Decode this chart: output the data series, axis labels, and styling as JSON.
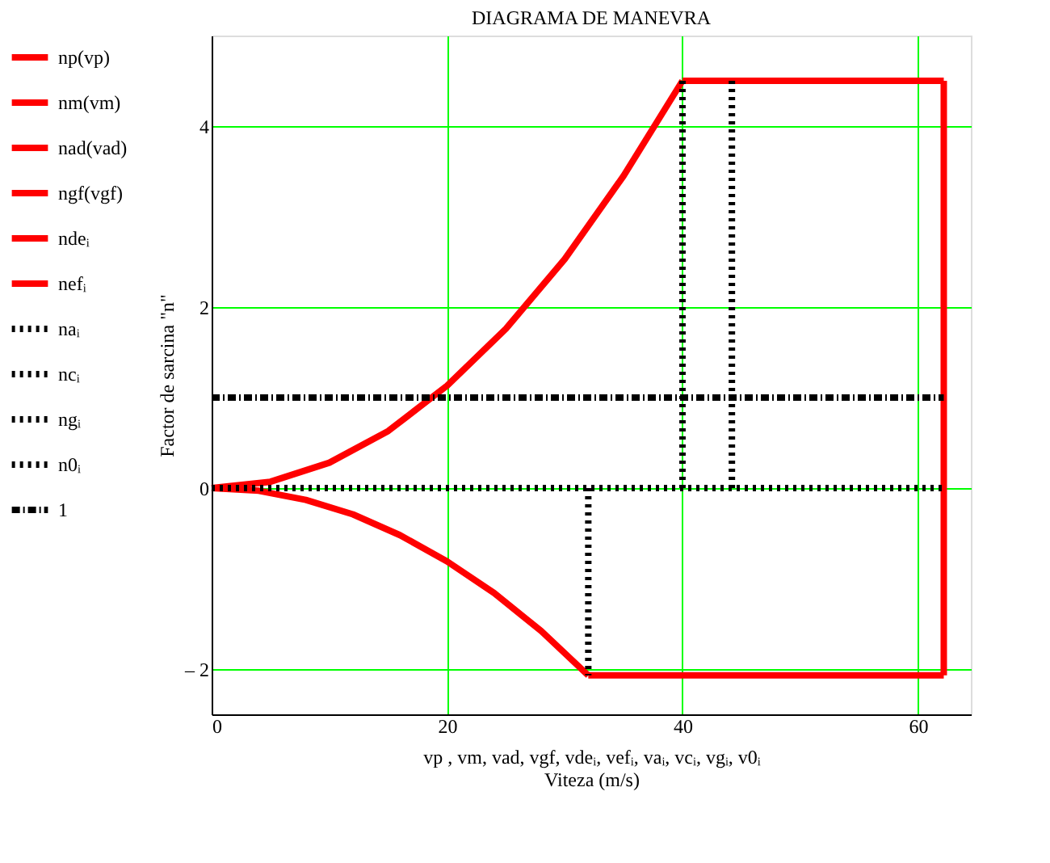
{
  "chart_data": {
    "type": "line",
    "title": "DIAGRAMA DE MANEVRA",
    "xlabel": "vp , vm, vad, vgf, vdeᵢ, vefᵢ, vaᵢ, vcᵢ, vgᵢ, v0ᵢ",
    "ylabel": "Factor de sarcina \"n\"",
    "annotations": [
      "Viteza (m/s)"
    ],
    "xlim": [
      0,
      64.5
    ],
    "ylim": [
      -2.5,
      5
    ],
    "xticks": [
      0,
      20,
      40,
      60
    ],
    "yticks": [
      {
        "value": -2,
        "label": "– 2"
      },
      0,
      2,
      4
    ],
    "grid": true,
    "legend": "left",
    "marker": "none",
    "series": [
      {
        "name": "np(vp)",
        "color": "#ff0000",
        "line_style": "solid",
        "x": [
          0,
          5,
          10,
          15,
          20,
          25,
          30,
          35,
          40
        ],
        "values": [
          0,
          0.07,
          0.28,
          0.63,
          1.13,
          1.76,
          2.53,
          3.45,
          4.5
        ]
      },
      {
        "name": "nm(vm)",
        "color": "#ff0000",
        "line_style": "solid",
        "x": [
          0,
          4,
          8,
          12,
          16,
          20,
          24,
          28,
          32
        ],
        "values": [
          0,
          -0.03,
          -0.13,
          -0.29,
          -0.52,
          -0.81,
          -1.16,
          -1.58,
          -2.07
        ]
      },
      {
        "name": "nad(vad)",
        "color": "#ff0000",
        "line_style": "solid",
        "x": [
          40,
          62.2
        ],
        "values": [
          4.5,
          4.5
        ]
      },
      {
        "name": "ngf(vgf)",
        "color": "#ff0000",
        "line_style": "solid",
        "x": [
          32,
          62.2
        ],
        "values": [
          -2.07,
          -2.07
        ]
      },
      {
        "name": "ndeᵢ",
        "color": "#ff0000",
        "line_style": "solid",
        "x": [
          62.2,
          62.2
        ],
        "values": [
          4.5,
          -2.07
        ]
      },
      {
        "name": "nefᵢ",
        "color": "#ff0000",
        "line_style": "solid"
      },
      {
        "name": "naᵢ",
        "color": "#000000",
        "line_style": "dotted",
        "x": [
          40,
          40
        ],
        "values": [
          0,
          4.5
        ]
      },
      {
        "name": "ncᵢ",
        "color": "#000000",
        "line_style": "dotted",
        "x": [
          44.2,
          44.2
        ],
        "values": [
          0,
          4.5
        ]
      },
      {
        "name": "ngᵢ",
        "color": "#000000",
        "line_style": "dotted",
        "x": [
          32,
          32
        ],
        "values": [
          0,
          -2.07
        ]
      },
      {
        "name": "n0ᵢ",
        "color": "#000000",
        "line_style": "dotted",
        "x": [
          0,
          62.2
        ],
        "values": [
          0,
          0
        ]
      },
      {
        "name": "1",
        "color": "#000000",
        "line_style": "dashdot",
        "x": [
          0,
          62.2
        ],
        "values": [
          1,
          1
        ]
      }
    ]
  }
}
